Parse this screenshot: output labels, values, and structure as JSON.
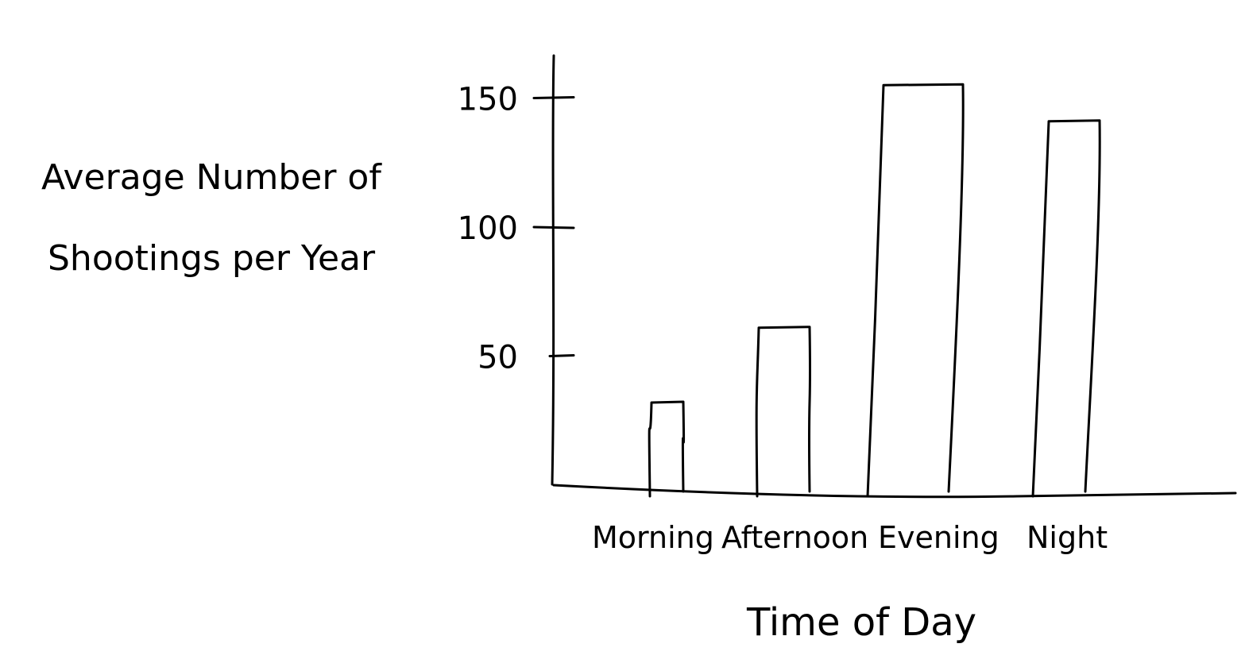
{
  "chart_data": {
    "type": "bar",
    "title": "",
    "xlabel": "Time of Day",
    "ylabel_lines": [
      "Average Number of",
      "Shootings per Year"
    ],
    "categories": [
      "Morning",
      "Afternoon",
      "Evening",
      "Night"
    ],
    "values": [
      32,
      61,
      155,
      141
    ],
    "yticks": [
      50,
      100,
      150
    ],
    "ylim": [
      0,
      180
    ],
    "grid": false,
    "legend": "none",
    "style": "hand-drawn",
    "colors": {
      "stroke": "#000000",
      "fill": "#ffffff"
    }
  }
}
